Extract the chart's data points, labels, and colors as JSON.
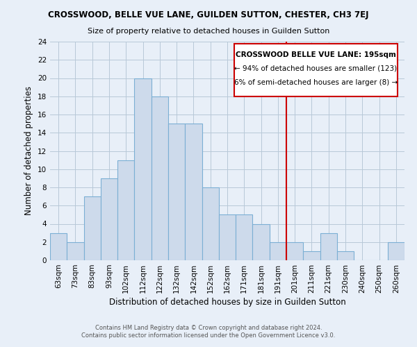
{
  "title": "CROSSWOOD, BELLE VUE LANE, GUILDEN SUTTON, CHESTER, CH3 7EJ",
  "subtitle": "Size of property relative to detached houses in Guilden Sutton",
  "xlabel": "Distribution of detached houses by size in Guilden Sutton",
  "ylabel": "Number of detached properties",
  "bin_labels": [
    "63sqm",
    "73sqm",
    "83sqm",
    "93sqm",
    "102sqm",
    "112sqm",
    "122sqm",
    "132sqm",
    "142sqm",
    "152sqm",
    "162sqm",
    "171sqm",
    "181sqm",
    "191sqm",
    "201sqm",
    "211sqm",
    "221sqm",
    "230sqm",
    "240sqm",
    "250sqm",
    "260sqm"
  ],
  "bar_heights": [
    3,
    2,
    7,
    9,
    11,
    20,
    18,
    15,
    15,
    8,
    5,
    5,
    4,
    2,
    2,
    1,
    3,
    1,
    0,
    0,
    2
  ],
  "bar_color": "#cddaeb",
  "bar_edge_color": "#7bafd4",
  "vline_x_idx": 13,
  "vline_color": "#cc0000",
  "ylim": [
    0,
    24
  ],
  "yticks": [
    0,
    2,
    4,
    6,
    8,
    10,
    12,
    14,
    16,
    18,
    20,
    22,
    24
  ],
  "annotation_title": "CROSSWOOD BELLE VUE LANE: 195sqm",
  "annotation_line1": "← 94% of detached houses are smaller (123)",
  "annotation_line2": "6% of semi-detached houses are larger (8) →",
  "annotation_box_color": "#ffffff",
  "annotation_box_edge": "#cc0000",
  "footer_line1": "Contains HM Land Registry data © Crown copyright and database right 2024.",
  "footer_line2": "Contains public sector information licensed under the Open Government Licence v3.0.",
  "bg_color": "#e8eff8",
  "grid_color": "#c8d4e0",
  "n_bins": 21
}
